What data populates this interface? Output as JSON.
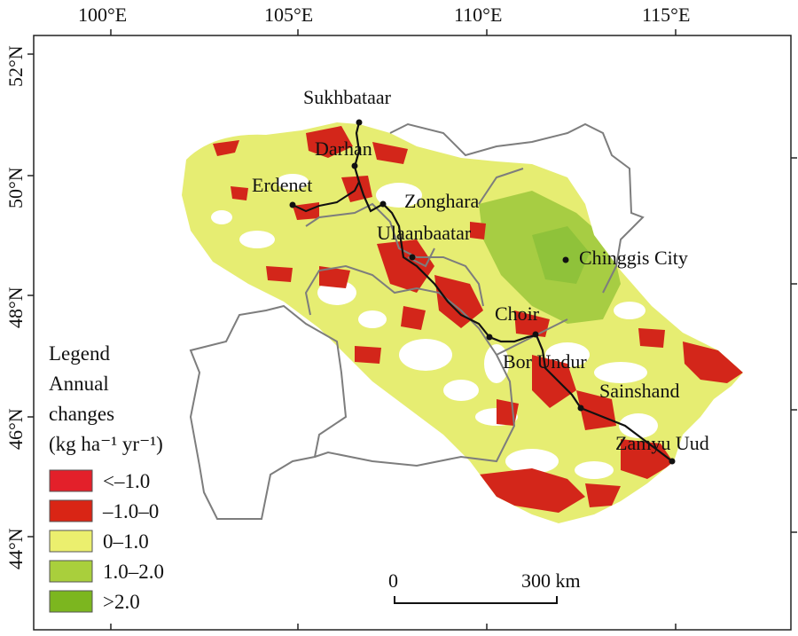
{
  "axes": {
    "top_ticks": [
      "100°E",
      "105°E",
      "110°E",
      "115°E"
    ],
    "left_ticks": [
      "52°N",
      "50°N",
      "48°N",
      "46°N",
      "44°N"
    ]
  },
  "cities": [
    {
      "name": "Sukhbataar"
    },
    {
      "name": "Darhan"
    },
    {
      "name": "Erdenet"
    },
    {
      "name": "Zonghara"
    },
    {
      "name": "Ulaanbaatar"
    },
    {
      "name": "Chinggis City"
    },
    {
      "name": "Choir"
    },
    {
      "name": "Bor Undur"
    },
    {
      "name": "Sainshand"
    },
    {
      "name": "Zamyu Uud"
    }
  ],
  "legend": {
    "title_lines": [
      "Legend",
      "Annual",
      "changes",
      "(kg ha⁻¹ yr⁻¹)"
    ],
    "items": [
      {
        "label": "<–1.0",
        "color": "#e3202a"
      },
      {
        "label": "–1.0–0",
        "color": "#d92515"
      },
      {
        "label": "0–1.0",
        "color": "#ebef6e"
      },
      {
        "label": "1.0–2.0",
        "color": "#a9cf3c"
      },
      {
        "label": ">2.0",
        "color": "#7cb61f"
      }
    ]
  },
  "scale_bar": {
    "start": "0",
    "end": "300 km"
  },
  "colors": {
    "boundary": "#7d7d7d",
    "road": "#111111",
    "yellow": "#e6ed72",
    "red": "#d3261a",
    "green": "#a7cd43"
  }
}
